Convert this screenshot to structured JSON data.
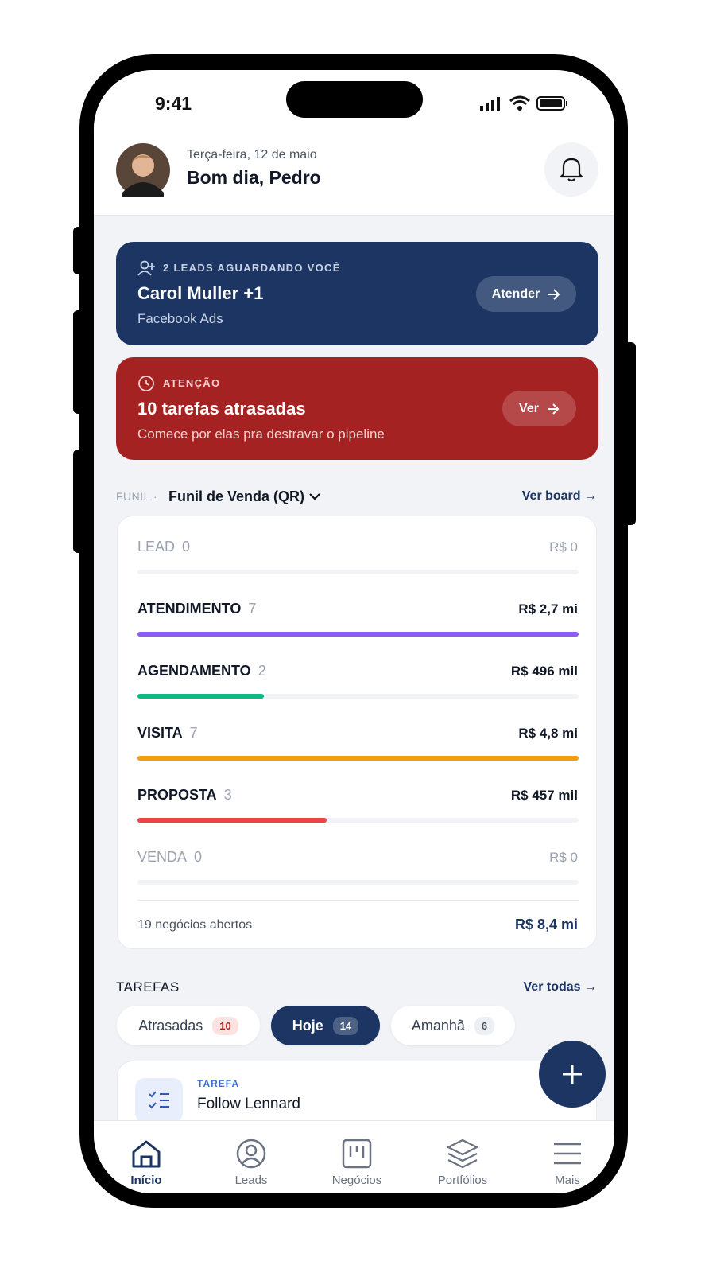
{
  "status_bar": {
    "time": "9:41"
  },
  "header": {
    "date": "Terça-feira, 12 de maio",
    "greeting": "Bom dia, Pedro"
  },
  "lead_alert": {
    "label": "2 LEADS AGUARDANDO VOCÊ",
    "name": "Carol Muller +1",
    "source": "Facebook Ads",
    "button": "Atender"
  },
  "overdue_alert": {
    "label": "ATENÇÃO",
    "title": "10 tarefas atrasadas",
    "subtitle": "Comece por elas pra destravar o pipeline",
    "button": "Ver"
  },
  "funnel": {
    "prefix": "FUNIL ·",
    "name": "Funil de Venda (QR)",
    "link": "Ver board →",
    "stages": [
      {
        "name": "LEAD",
        "count": 0,
        "value": "R$ 0",
        "color": "#cbd1d9"
      },
      {
        "name": "ATENDIMENTO",
        "count": 7,
        "value": "R$ 2,7 mi",
        "color": "#8b5cf6"
      },
      {
        "name": "AGENDAMENTO",
        "count": 2,
        "value": "R$ 496 mil",
        "color": "#10b981"
      },
      {
        "name": "VISITA",
        "count": 7,
        "value": "R$ 4,8 mi",
        "color": "#f59e0b"
      },
      {
        "name": "PROPOSTA",
        "count": 3,
        "value": "R$ 457 mil",
        "color": "#ef4444"
      },
      {
        "name": "VENDA",
        "count": 0,
        "value": "R$ 0",
        "color": "#cbd1d9"
      }
    ],
    "summary": "19 negócios abertos",
    "total": "R$ 8,4 mi"
  },
  "tasks": {
    "title": "TAREFAS",
    "link": "Ver todas →",
    "tabs": [
      {
        "label": "Atrasadas",
        "count": 10
      },
      {
        "label": "Hoje",
        "count": 14
      },
      {
        "label": "Amanhã",
        "count": 6
      }
    ],
    "card": {
      "type": "TAREFA",
      "title": "Follow Lennard"
    }
  },
  "nav": [
    {
      "label": "Início"
    },
    {
      "label": "Leads"
    },
    {
      "label": "Negócios"
    },
    {
      "label": "Portfólios"
    },
    {
      "label": "Mais"
    }
  ]
}
